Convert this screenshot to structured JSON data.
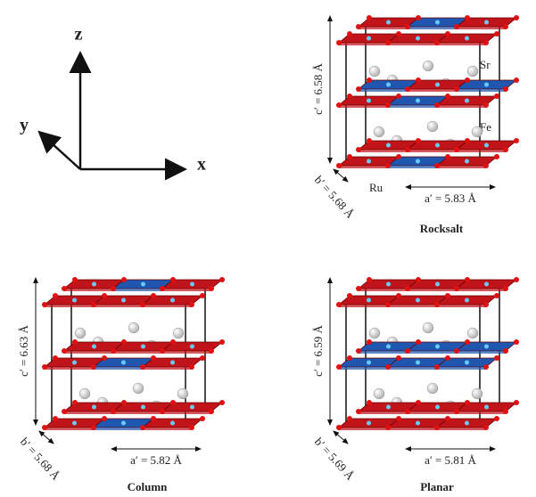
{
  "axes": {
    "z": "z",
    "y": "y",
    "x": "x"
  },
  "panels": [
    {
      "title": "Rocksalt",
      "c": "c′ = 6.58 Å",
      "b": "b′ = 5.68 Å",
      "a": "a′ = 5.83 Å",
      "atoms": {
        "sr": "Sr",
        "fe": "Fe",
        "ru": "Ru"
      }
    },
    {
      "title": "Column",
      "c": "c′ = 6.63 Å",
      "b": "b′ = 5.68 Å",
      "a": "a′ = 5.82 Å"
    },
    {
      "title": "Planar",
      "c": "c′ = 6.59 Å",
      "b": "b′ = 5.69 Å",
      "a": "a′ = 5.81 Å"
    }
  ]
}
